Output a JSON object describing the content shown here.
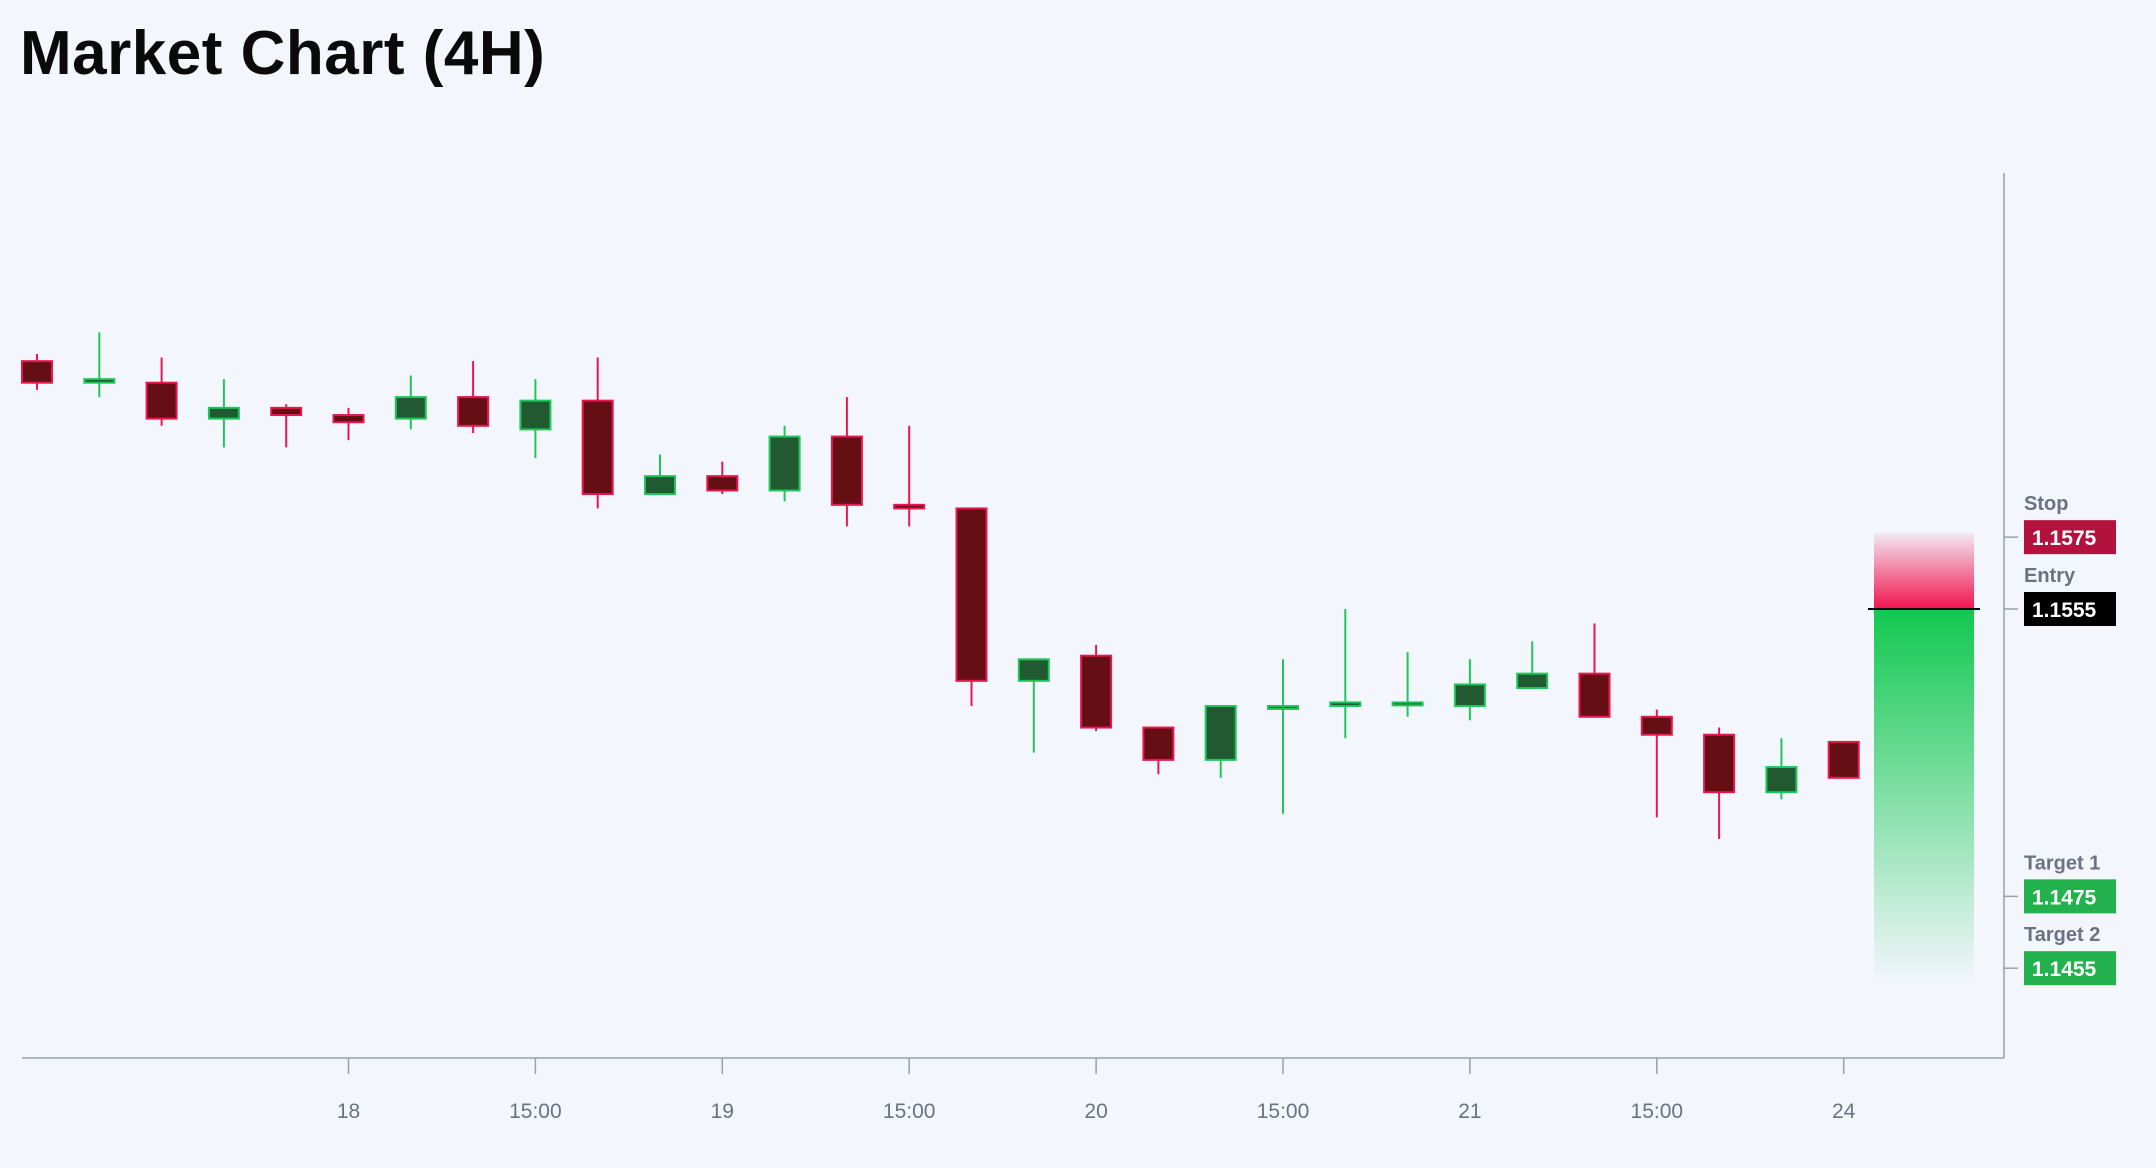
{
  "chart_data": {
    "type": "candlestick",
    "title": "Market Chart (4H)",
    "xlabel": "",
    "ylabel": "",
    "grid": false,
    "x_ticks": [
      {
        "label": "18",
        "index": 5
      },
      {
        "label": "15:00",
        "index": 8
      },
      {
        "label": "19",
        "index": 11
      },
      {
        "label": "15:00",
        "index": 14
      },
      {
        "label": "20",
        "index": 17
      },
      {
        "label": "15:00",
        "index": 20
      },
      {
        "label": "21",
        "index": 23
      },
      {
        "label": "15:00",
        "index": 26
      },
      {
        "label": "24",
        "index": 29
      }
    ],
    "candles": [
      {
        "o": 1.1624,
        "h": 1.1626,
        "l": 1.1616,
        "c": 1.1618
      },
      {
        "o": 1.1618,
        "h": 1.1632,
        "l": 1.1614,
        "c": 1.1619
      },
      {
        "o": 1.1618,
        "h": 1.1625,
        "l": 1.1606,
        "c": 1.1608
      },
      {
        "o": 1.1608,
        "h": 1.1619,
        "l": 1.16,
        "c": 1.1611
      },
      {
        "o": 1.1611,
        "h": 1.1612,
        "l": 1.16,
        "c": 1.1609
      },
      {
        "o": 1.1609,
        "h": 1.1611,
        "l": 1.1602,
        "c": 1.1607
      },
      {
        "o": 1.1608,
        "h": 1.162,
        "l": 1.1605,
        "c": 1.1614
      },
      {
        "o": 1.1614,
        "h": 1.1624,
        "l": 1.1604,
        "c": 1.1606
      },
      {
        "o": 1.1605,
        "h": 1.1619,
        "l": 1.1597,
        "c": 1.1613
      },
      {
        "o": 1.1613,
        "h": 1.1625,
        "l": 1.1583,
        "c": 1.1587
      },
      {
        "o": 1.1587,
        "h": 1.1598,
        "l": 1.1587,
        "c": 1.1592
      },
      {
        "o": 1.1592,
        "h": 1.1596,
        "l": 1.1587,
        "c": 1.1588
      },
      {
        "o": 1.1588,
        "h": 1.1606,
        "l": 1.1585,
        "c": 1.1603
      },
      {
        "o": 1.1603,
        "h": 1.1614,
        "l": 1.1578,
        "c": 1.1584
      },
      {
        "o": 1.1584,
        "h": 1.1606,
        "l": 1.1578,
        "c": 1.1583
      },
      {
        "o": 1.1583,
        "h": 1.1583,
        "l": 1.1528,
        "c": 1.1535
      },
      {
        "o": 1.1535,
        "h": 1.1541,
        "l": 1.1515,
        "c": 1.1541
      },
      {
        "o": 1.1542,
        "h": 1.1545,
        "l": 1.1521,
        "c": 1.1522
      },
      {
        "o": 1.1522,
        "h": 1.1522,
        "l": 1.1509,
        "c": 1.1513
      },
      {
        "o": 1.1513,
        "h": 1.1528,
        "l": 1.1508,
        "c": 1.1528
      },
      {
        "o": 1.1528,
        "h": 1.1541,
        "l": 1.1498,
        "c": 1.1528
      },
      {
        "o": 1.1528,
        "h": 1.1555,
        "l": 1.1519,
        "c": 1.1529
      },
      {
        "o": 1.1529,
        "h": 1.1543,
        "l": 1.1525,
        "c": 1.1529
      },
      {
        "o": 1.1528,
        "h": 1.1541,
        "l": 1.1524,
        "c": 1.1534
      },
      {
        "o": 1.1533,
        "h": 1.1546,
        "l": 1.1533,
        "c": 1.1537
      },
      {
        "o": 1.1537,
        "h": 1.1551,
        "l": 1.1525,
        "c": 1.1525
      },
      {
        "o": 1.1525,
        "h": 1.1527,
        "l": 1.1497,
        "c": 1.152
      },
      {
        "o": 1.152,
        "h": 1.1522,
        "l": 1.1491,
        "c": 1.1504
      },
      {
        "o": 1.1504,
        "h": 1.1519,
        "l": 1.1502,
        "c": 1.1511
      },
      {
        "o": 1.1518,
        "h": 1.1518,
        "l": 1.1508,
        "c": 1.1508
      }
    ],
    "levels": [
      {
        "name": "Stop",
        "value": "1.1575",
        "price": 1.1575,
        "color": "#b3123e"
      },
      {
        "name": "Entry",
        "value": "1.1555",
        "price": 1.1555,
        "color": "#000000"
      },
      {
        "name": "Target 1",
        "value": "1.1475",
        "price": 1.1475,
        "color": "#22b14c"
      },
      {
        "name": "Target 2",
        "value": "1.1455",
        "price": 1.1455,
        "color": "#22b14c"
      }
    ],
    "y_range": [
      1.143,
      1.168
    ],
    "colors": {
      "bull_body": "#215a30",
      "bull_border": "#1ec75a",
      "bear_body": "#650e14",
      "bear_border": "#e8174f",
      "risk_zone": "#f0134e",
      "reward_zone": "#12c850",
      "axis": "#9aa0aa",
      "background": "#f3f6fd"
    }
  }
}
